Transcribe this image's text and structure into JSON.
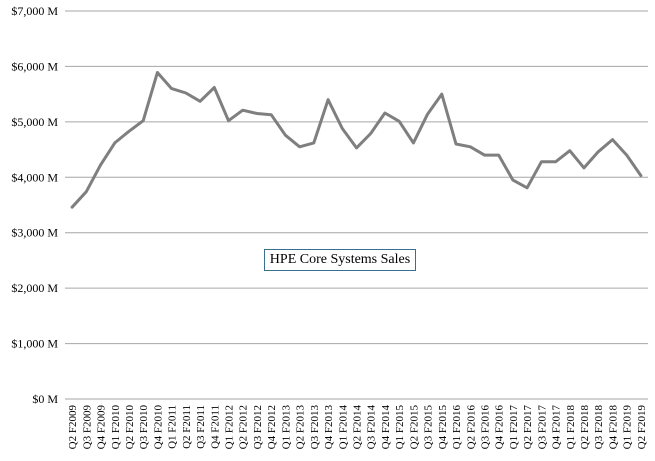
{
  "chart_data": {
    "type": "line",
    "title": "HPE Core Systems Sales",
    "xlabel": "",
    "ylabel": "",
    "ylim": [
      0,
      7000
    ],
    "yticks": [
      0,
      1000,
      2000,
      3000,
      4000,
      5000,
      6000,
      7000
    ],
    "ytick_labels": [
      "$0 M",
      "$1,000 M",
      "$2,000 M",
      "$3,000 M",
      "$4,000 M",
      "$5,000 M",
      "$6,000 M",
      "$7,000 M"
    ],
    "grid": true,
    "legend": "none",
    "line_color": "#7f7f7f",
    "categories": [
      "Q2 F2009",
      "Q3 F2009",
      "Q4 F2009",
      "Q1 F2010",
      "Q2 F2010",
      "Q3 F2010",
      "Q4 F2010",
      "Q1 F2011",
      "Q2 F2011",
      "Q3 F2011",
      "Q4 F2011",
      "Q1 F2012",
      "Q2 F2012",
      "Q3 F2012",
      "Q4 F2012",
      "Q1 F2013",
      "Q2 F2013",
      "Q3 F2013",
      "Q4 F2013",
      "Q1 F2014",
      "Q2 F2014",
      "Q3 F2014",
      "Q4 F2014",
      "Q1 F2015",
      "Q2 F2015",
      "Q3 F2015",
      "Q4 F2015",
      "Q1 F2016",
      "Q2 F2016",
      "Q3 F2016",
      "Q4 F2016",
      "Q1 F2017",
      "Q2 F2017",
      "Q3 F2017",
      "Q4 F2017",
      "Q1 F2018",
      "Q2 F2018",
      "Q3 F2018",
      "Q4 F2018",
      "Q1 F2019",
      "Q2 F2019"
    ],
    "series": [
      {
        "values": [
          3460,
          3740,
          4220,
          4620,
          4830,
          5020,
          5890,
          5600,
          5520,
          5370,
          5620,
          5020,
          5210,
          5150,
          5130,
          4760,
          4550,
          4620,
          5400,
          4880,
          4530,
          4790,
          5160,
          5010,
          4620,
          5140,
          5500,
          4600,
          4550,
          4400,
          4400,
          3950,
          3810,
          4280,
          4280,
          4480,
          4170,
          4460,
          4680,
          4400,
          4030
        ]
      }
    ]
  }
}
